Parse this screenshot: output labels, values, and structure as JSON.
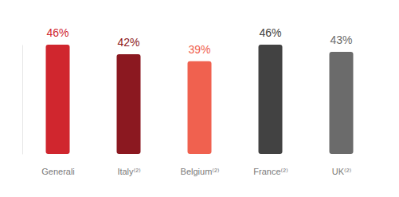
{
  "chart_data": {
    "type": "bar",
    "categories": [
      "Generali",
      "Italy⁽²⁾",
      "Belgium⁽²⁾",
      "France⁽²⁾",
      "UK⁽²⁾"
    ],
    "values": [
      46,
      42,
      39,
      46,
      43
    ],
    "value_labels": [
      "46%",
      "42%",
      "39%",
      "46%",
      "43%"
    ],
    "colors": [
      "#d0262e",
      "#8b1820",
      "#f0614f",
      "#424242",
      "#6b6b6b"
    ],
    "ylim": [
      0,
      46
    ],
    "data_labels": true,
    "tick_labels": "x",
    "grid": false
  }
}
